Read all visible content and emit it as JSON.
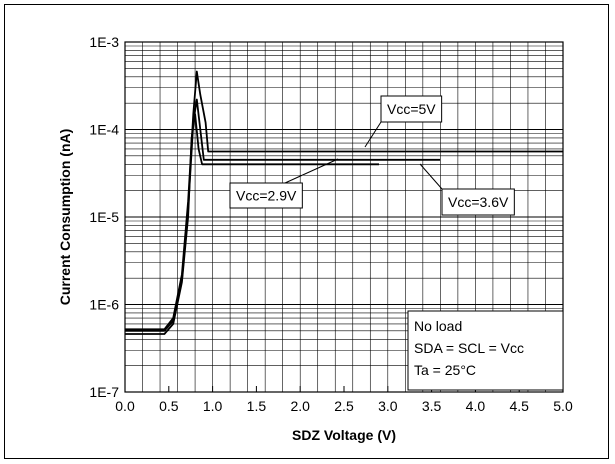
{
  "chart_data": {
    "type": "line",
    "title": "",
    "xlabel": "SDZ Voltage (V)",
    "ylabel": "Current Consumption (nA)",
    "xlim": [
      0.0,
      5.0
    ],
    "ylim_log10": [
      -7,
      -3
    ],
    "y_scale": "log",
    "grid": true,
    "x_ticks": [
      "0.0",
      "0.5",
      "1.0",
      "1.5",
      "2.0",
      "2.5",
      "3.0",
      "3.5",
      "4.0",
      "4.5",
      "5.0"
    ],
    "y_ticks": [
      "1E-7",
      "1E-6",
      "1E-5",
      "1E-4",
      "1E-3"
    ],
    "series": [
      {
        "name": "Vcc=5V",
        "x": [
          0.0,
          0.45,
          0.55,
          0.65,
          0.72,
          0.78,
          0.82,
          0.86,
          0.92,
          0.95,
          1.0,
          5.0
        ],
        "y": [
          5.2e-07,
          5.2e-07,
          7e-07,
          2.2e-06,
          1.5e-05,
          0.00015,
          0.00046,
          0.00025,
          0.00012,
          5.6e-05,
          5.6e-05,
          5.6e-05
        ]
      },
      {
        "name": "Vcc=3.6V",
        "x": [
          0.0,
          0.45,
          0.55,
          0.65,
          0.72,
          0.78,
          0.82,
          0.86,
          0.9,
          3.6
        ],
        "y": [
          5e-07,
          5e-07,
          6.5e-07,
          1.9e-06,
          1.2e-05,
          0.00012,
          0.00022,
          0.0001,
          4.5e-05,
          4.5e-05
        ]
      },
      {
        "name": "Vcc=2.9V",
        "x": [
          0.0,
          0.45,
          0.55,
          0.65,
          0.72,
          0.76,
          0.8,
          0.84,
          0.88,
          2.9
        ],
        "y": [
          4.6e-07,
          4.6e-07,
          6e-07,
          1.8e-06,
          1e-05,
          8e-05,
          0.00015,
          6e-05,
          4e-05,
          4e-05
        ]
      }
    ],
    "annotations": {
      "v5": "Vcc=5V",
      "v36": "Vcc=3.6V",
      "v29": "Vcc=2.9V",
      "conditions": [
        "No load",
        "SDA = SCL = Vcc",
        "Ta = 25°C"
      ]
    }
  }
}
